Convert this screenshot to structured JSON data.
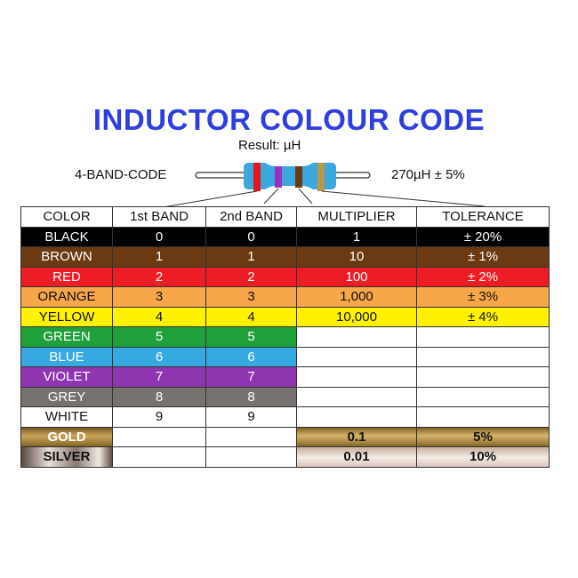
{
  "title": "INDUCTOR COLOUR CODE",
  "result_label": "Result:  µH",
  "band_code_label": "4-BAND-CODE",
  "example_value": "270µH  ±  5%",
  "example_bands": [
    "#e8141c",
    "#9b30c0",
    "#6b3a12",
    "#b8964a"
  ],
  "body_color": "#3aa8dc",
  "headers": [
    "COLOR",
    "1st BAND",
    "2nd BAND",
    "MULTIPLIER",
    "TOLERANCE"
  ],
  "rows": [
    {
      "color": "BLACK",
      "bg": "#000000",
      "fg": "#ffffff",
      "b1": "0",
      "b2": "0",
      "mult": "1",
      "tol": "± 20%"
    },
    {
      "color": "BROWN",
      "bg": "#6b3a12",
      "fg": "#ffffff",
      "b1": "1",
      "b2": "1",
      "mult": "10",
      "tol": "± 1%"
    },
    {
      "color": "RED",
      "bg": "#ee1c24",
      "fg": "#ffffff",
      "b1": "2",
      "b2": "2",
      "mult": "100",
      "tol": "± 2%"
    },
    {
      "color": "ORANGE",
      "bg": "#f7a64a",
      "fg": "#111111",
      "b1": "3",
      "b2": "3",
      "mult": "1,000",
      "tol": "± 3%"
    },
    {
      "color": "YELLOW",
      "bg": "#fff200",
      "fg": "#111111",
      "b1": "4",
      "b2": "4",
      "mult": "10,000",
      "tol": "± 4%"
    },
    {
      "color": "GREEN",
      "bg": "#1fa03a",
      "fg": "#ffffff",
      "b1": "5",
      "b2": "5",
      "mult": "",
      "tol": ""
    },
    {
      "color": "BLUE",
      "bg": "#36a9e1",
      "fg": "#ffffff",
      "b1": "6",
      "b2": "6",
      "mult": "",
      "tol": ""
    },
    {
      "color": "VIOLET",
      "bg": "#8e35b0",
      "fg": "#ffffff",
      "b1": "7",
      "b2": "7",
      "mult": "",
      "tol": ""
    },
    {
      "color": "GREY",
      "bg": "#777270",
      "fg": "#ffffff",
      "b1": "8",
      "b2": "8",
      "mult": "",
      "tol": ""
    },
    {
      "color": "WHITE",
      "bg": "#ffffff",
      "fg": "#111111",
      "b1": "9",
      "b2": "9",
      "mult": "",
      "tol": ""
    },
    {
      "color": "GOLD",
      "bg": "gold",
      "fg": "",
      "b1": "",
      "b2": "",
      "mult": "0.1",
      "tol": "5%"
    },
    {
      "color": "SILVER",
      "bg": "silver",
      "fg": "",
      "b1": "",
      "b2": "",
      "mult": "0.01",
      "tol": "10%"
    }
  ]
}
